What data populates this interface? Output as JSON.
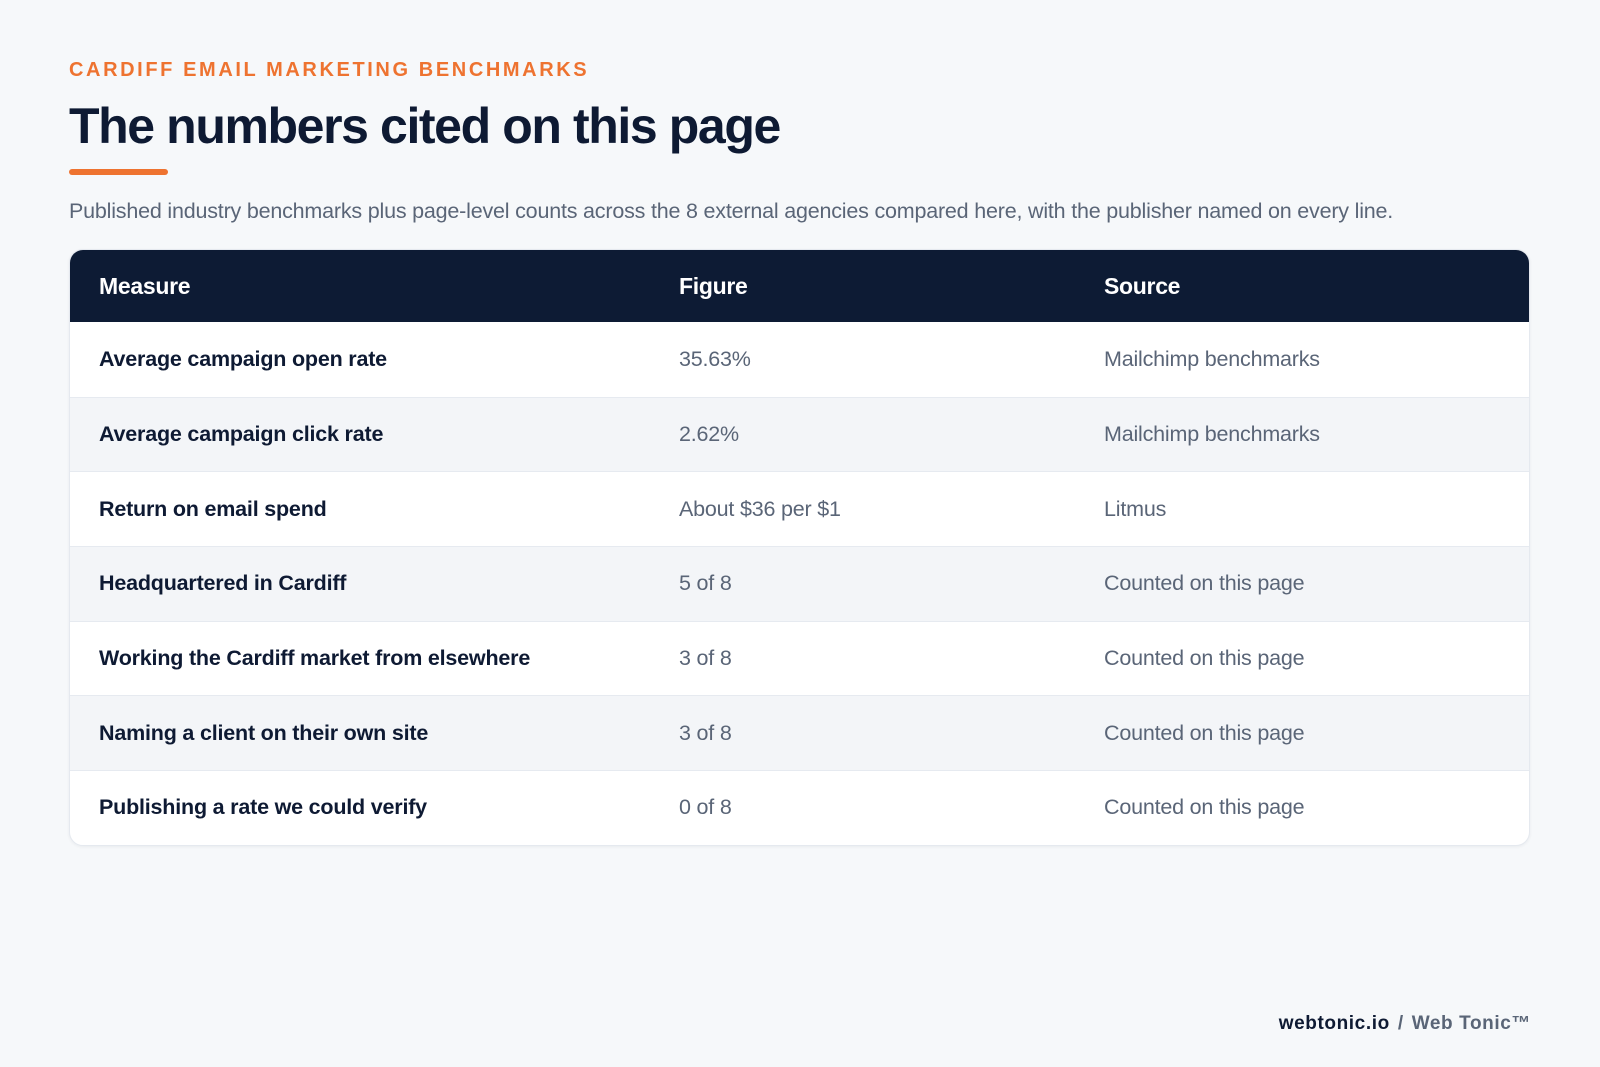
{
  "header": {
    "eyebrow": "CARDIFF EMAIL MARKETING BENCHMARKS",
    "title": "The numbers cited on this page",
    "subtitle": "Published industry benchmarks plus page-level counts across the 8 external agencies compared here, with the publisher named on every line."
  },
  "table": {
    "columns": [
      "Measure",
      "Figure",
      "Source"
    ],
    "rows": [
      {
        "measure": "Average campaign open rate",
        "figure": "35.63%",
        "source": "Mailchimp benchmarks"
      },
      {
        "measure": "Average campaign click rate",
        "figure": "2.62%",
        "source": "Mailchimp benchmarks"
      },
      {
        "measure": "Return on email spend",
        "figure": "About $36 per $1",
        "source": "Litmus"
      },
      {
        "measure": "Headquartered in Cardiff",
        "figure": "5 of 8",
        "source": "Counted on this page"
      },
      {
        "measure": "Working the Cardiff market from elsewhere",
        "figure": "3 of 8",
        "source": "Counted on this page"
      },
      {
        "measure": "Naming a client on their own site",
        "figure": "3 of 8",
        "source": "Counted on this page"
      },
      {
        "measure": "Publishing a rate we could verify",
        "figure": "0 of 8",
        "source": "Counted on this page"
      }
    ]
  },
  "footer": {
    "domain": "webtonic.io",
    "separator": "/",
    "brand": "Web Tonic™"
  },
  "colors": {
    "accent": "#ee7330",
    "navy": "#0d1b34",
    "muted_text": "#5a6577",
    "background": "#f6f8fa"
  }
}
